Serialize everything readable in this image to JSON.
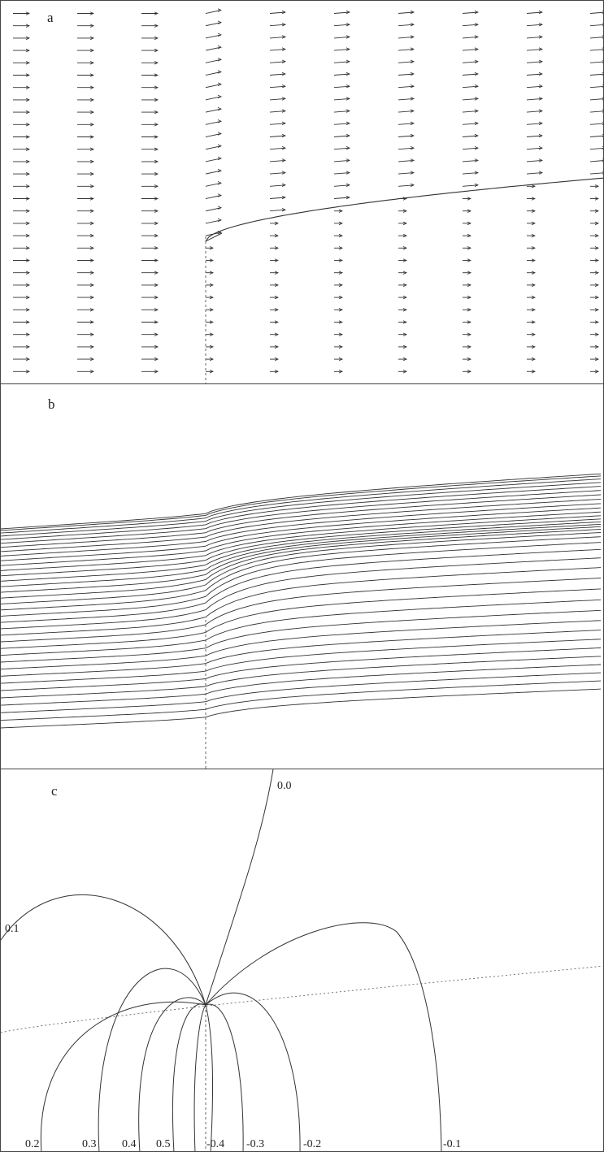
{
  "panels": {
    "a": {
      "letter": "a"
    },
    "b": {
      "letter": "b"
    },
    "c": {
      "letter": "c"
    }
  },
  "contour_labels": [
    "0.0",
    "0.1",
    "0.2",
    "0.3",
    "0.4",
    "0.5",
    "-0.4",
    "-0.3",
    "-0.2",
    "-0.1"
  ],
  "colors": {
    "line": "#333333",
    "dashed": "#555555",
    "border": "#444444"
  }
}
